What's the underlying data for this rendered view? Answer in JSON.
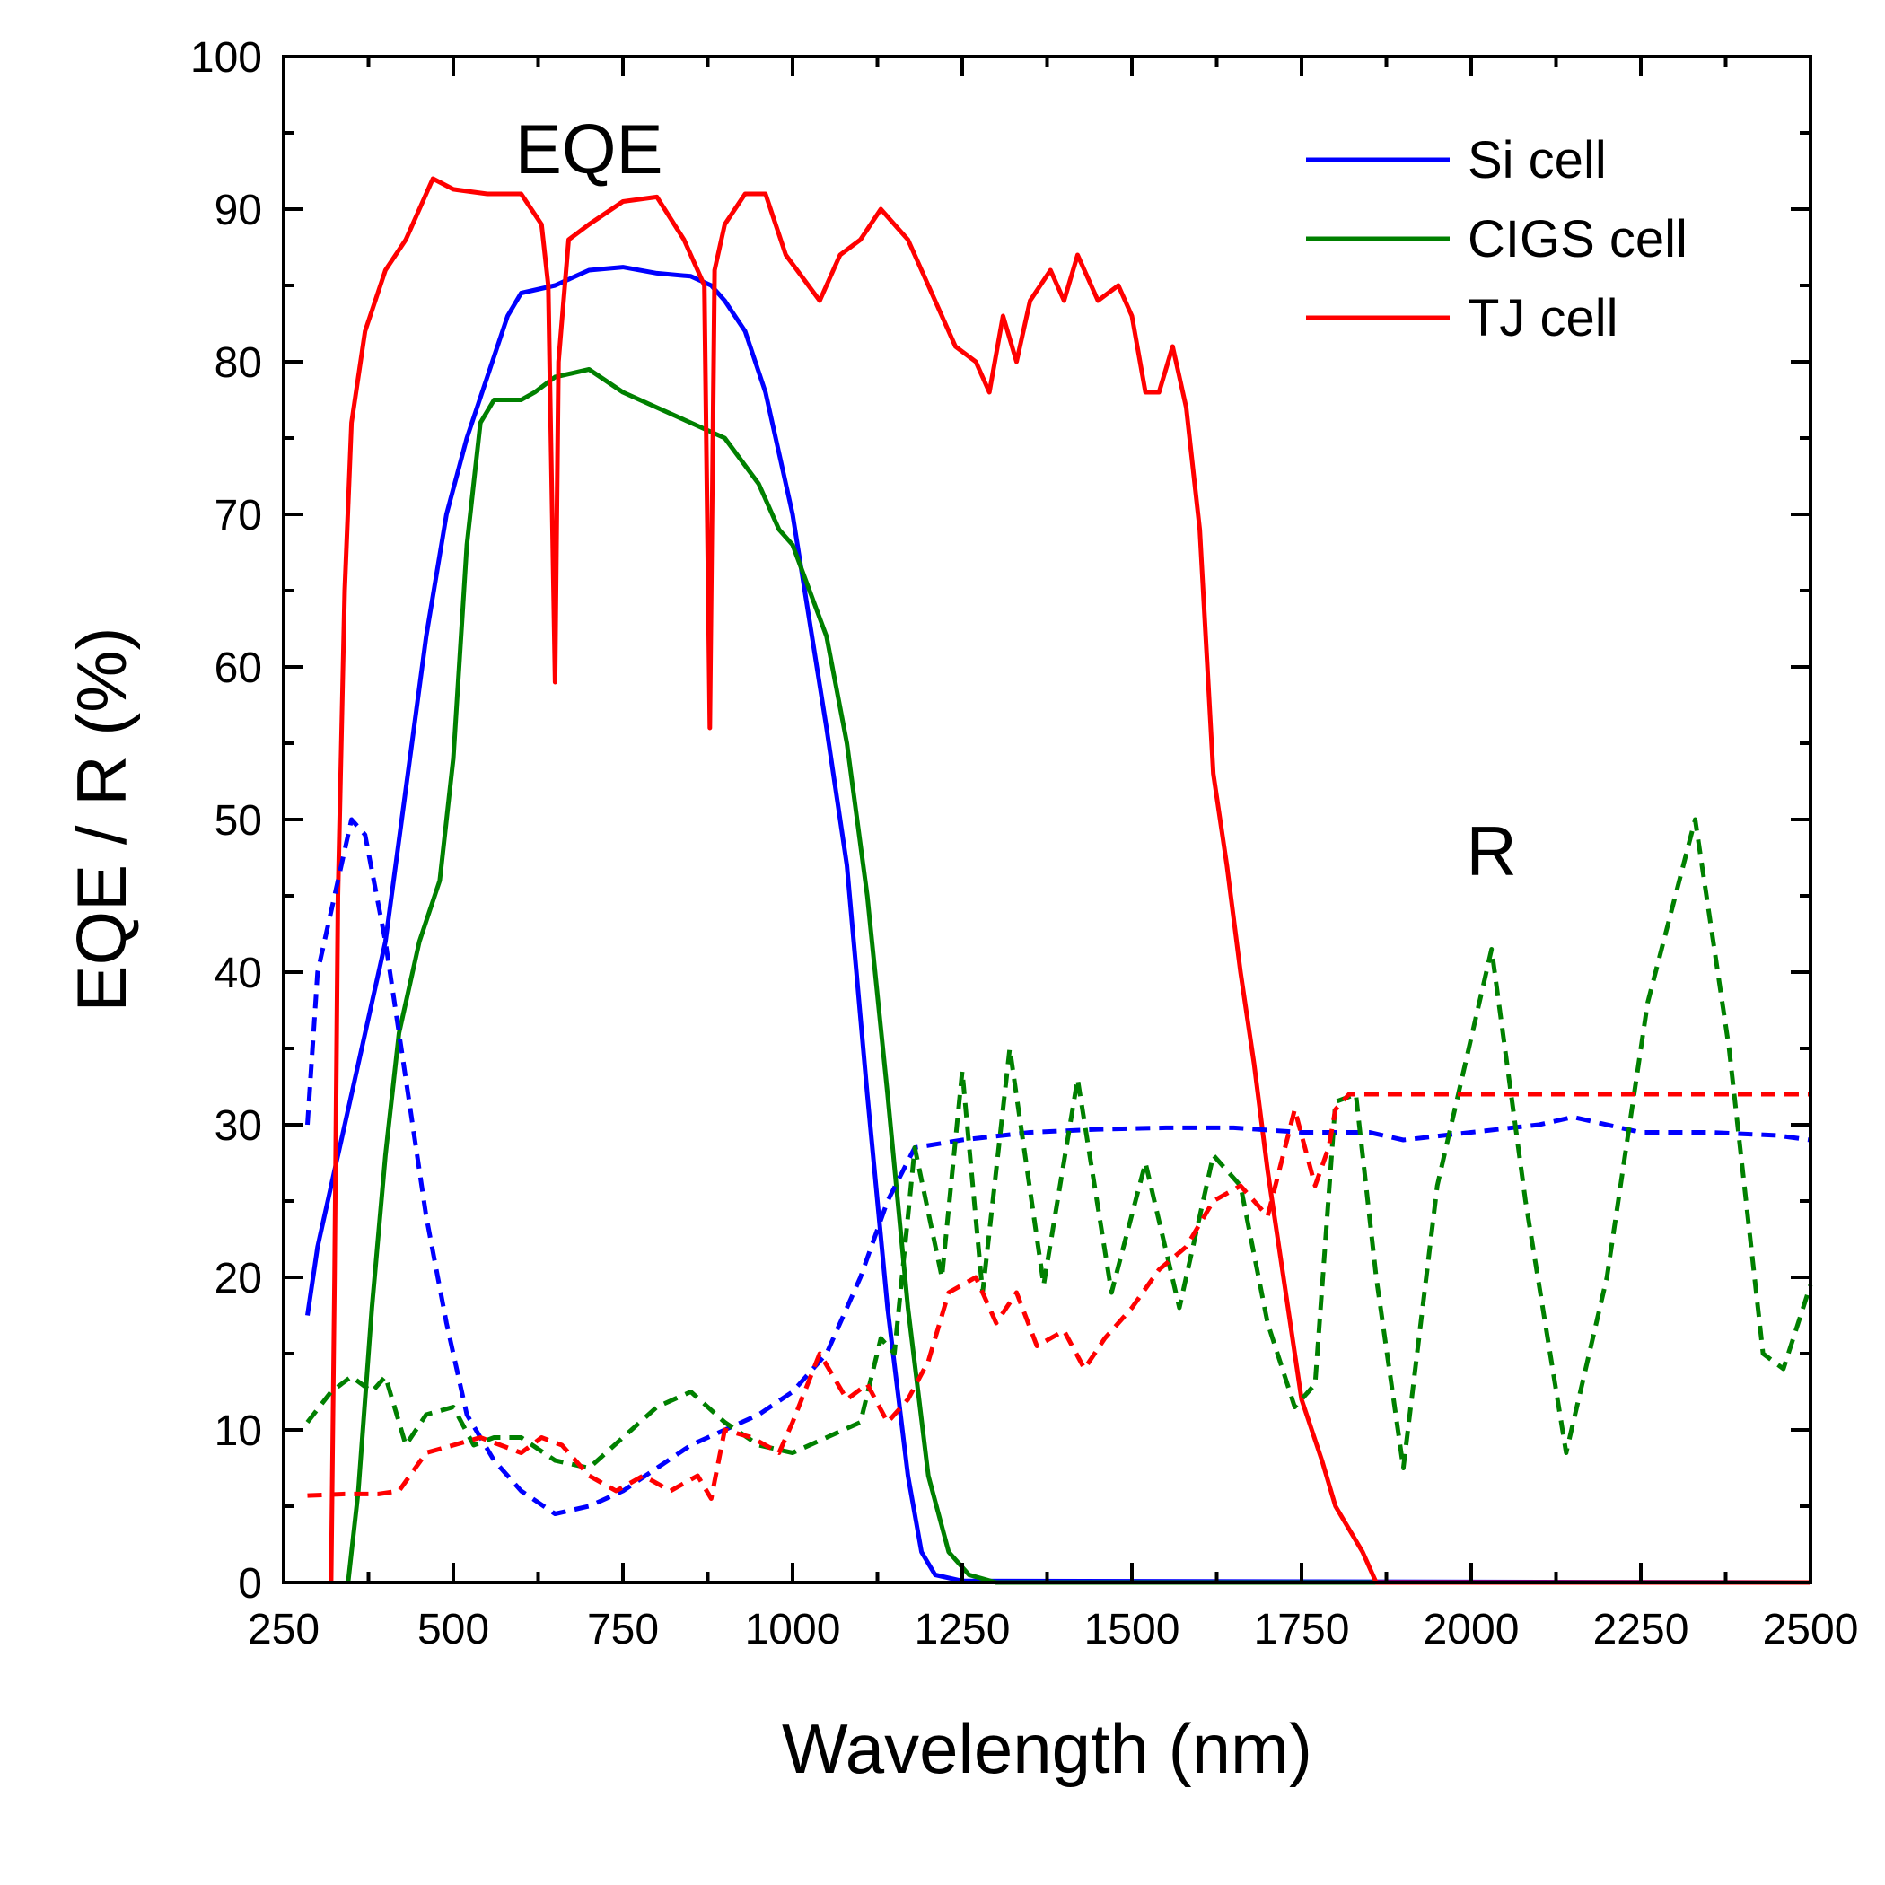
{
  "chart_data": {
    "type": "line",
    "xlabel": "Wavelength (nm)",
    "ylabel": "EQE / R (%)",
    "xlim": [
      250,
      2500
    ],
    "ylim": [
      0,
      100
    ],
    "x_ticks": [
      250,
      500,
      750,
      1000,
      1250,
      1500,
      1750,
      2000,
      2250,
      2500
    ],
    "y_ticks": [
      0,
      10,
      20,
      30,
      40,
      50,
      60,
      70,
      80,
      90,
      100
    ],
    "legend_position": "top-right",
    "grid": false,
    "annotations": [
      {
        "text": "EQE",
        "x": 700,
        "y": 94
      },
      {
        "text": "R",
        "x": 2030,
        "y": 48
      }
    ],
    "series": [
      {
        "name": "Si cell",
        "metric": "EQE",
        "style": "solid",
        "color": "#0000ff",
        "points": [
          [
            285,
            17.5
          ],
          [
            300,
            22
          ],
          [
            330,
            28
          ],
          [
            360,
            34
          ],
          [
            400,
            42
          ],
          [
            430,
            52
          ],
          [
            460,
            62
          ],
          [
            490,
            70
          ],
          [
            520,
            75
          ],
          [
            550,
            79
          ],
          [
            580,
            83
          ],
          [
            600,
            84.5
          ],
          [
            650,
            85
          ],
          [
            700,
            86
          ],
          [
            750,
            86.2
          ],
          [
            800,
            85.8
          ],
          [
            850,
            85.6
          ],
          [
            880,
            85
          ],
          [
            900,
            84
          ],
          [
            930,
            82
          ],
          [
            960,
            78
          ],
          [
            1000,
            70
          ],
          [
            1050,
            56
          ],
          [
            1080,
            47
          ],
          [
            1110,
            32
          ],
          [
            1140,
            18
          ],
          [
            1170,
            7
          ],
          [
            1190,
            2
          ],
          [
            1210,
            0.5
          ],
          [
            1250,
            0.1
          ],
          [
            2500,
            0
          ]
        ]
      },
      {
        "name": "CIGS cell",
        "metric": "EQE",
        "style": "solid",
        "color": "#008000",
        "points": [
          [
            345,
            0
          ],
          [
            360,
            6
          ],
          [
            380,
            18
          ],
          [
            400,
            28
          ],
          [
            420,
            36
          ],
          [
            450,
            42
          ],
          [
            480,
            46
          ],
          [
            500,
            54
          ],
          [
            520,
            68
          ],
          [
            540,
            76
          ],
          [
            560,
            77.5
          ],
          [
            600,
            77.5
          ],
          [
            620,
            78
          ],
          [
            650,
            79
          ],
          [
            700,
            79.5
          ],
          [
            750,
            78
          ],
          [
            800,
            77
          ],
          [
            850,
            76
          ],
          [
            900,
            75
          ],
          [
            950,
            72
          ],
          [
            980,
            69
          ],
          [
            1000,
            68
          ],
          [
            1050,
            62
          ],
          [
            1080,
            55
          ],
          [
            1110,
            45
          ],
          [
            1140,
            32
          ],
          [
            1170,
            18
          ],
          [
            1200,
            7
          ],
          [
            1230,
            2
          ],
          [
            1260,
            0.5
          ],
          [
            1300,
            0
          ],
          [
            2500,
            0
          ]
        ]
      },
      {
        "name": "TJ cell",
        "metric": "EQE",
        "style": "solid",
        "color": "#ff0000",
        "points": [
          [
            320,
            0
          ],
          [
            325,
            20
          ],
          [
            330,
            45
          ],
          [
            340,
            65
          ],
          [
            350,
            76
          ],
          [
            370,
            82
          ],
          [
            400,
            86
          ],
          [
            430,
            88
          ],
          [
            450,
            90
          ],
          [
            470,
            92
          ],
          [
            500,
            91.3
          ],
          [
            550,
            91
          ],
          [
            600,
            91
          ],
          [
            630,
            89
          ],
          [
            640,
            85
          ],
          [
            650,
            59
          ],
          [
            655,
            80
          ],
          [
            670,
            88
          ],
          [
            700,
            89
          ],
          [
            750,
            90.5
          ],
          [
            800,
            90.8
          ],
          [
            840,
            88
          ],
          [
            870,
            85
          ],
          [
            878,
            56
          ],
          [
            885,
            86
          ],
          [
            900,
            89
          ],
          [
            930,
            91
          ],
          [
            960,
            91
          ],
          [
            990,
            87
          ],
          [
            1040,
            84
          ],
          [
            1070,
            87
          ],
          [
            1100,
            88
          ],
          [
            1130,
            90
          ],
          [
            1150,
            89
          ],
          [
            1170,
            88
          ],
          [
            1200,
            85
          ],
          [
            1240,
            81
          ],
          [
            1270,
            80
          ],
          [
            1290,
            78
          ],
          [
            1310,
            83
          ],
          [
            1330,
            80
          ],
          [
            1350,
            84
          ],
          [
            1380,
            86
          ],
          [
            1400,
            84
          ],
          [
            1420,
            87
          ],
          [
            1450,
            84
          ],
          [
            1480,
            85
          ],
          [
            1500,
            83
          ],
          [
            1520,
            78
          ],
          [
            1540,
            78
          ],
          [
            1560,
            81
          ],
          [
            1580,
            77
          ],
          [
            1600,
            69
          ],
          [
            1620,
            53
          ],
          [
            1640,
            47
          ],
          [
            1660,
            40
          ],
          [
            1680,
            34
          ],
          [
            1700,
            27
          ],
          [
            1730,
            18
          ],
          [
            1750,
            12
          ],
          [
            1780,
            8
          ],
          [
            1800,
            5
          ],
          [
            1840,
            2
          ],
          [
            1860,
            0
          ],
          [
            2500,
            0
          ]
        ]
      },
      {
        "name": "Si cell",
        "metric": "R",
        "style": "dashed",
        "color": "#0000ff",
        "points": [
          [
            285,
            30
          ],
          [
            300,
            40
          ],
          [
            330,
            46
          ],
          [
            350,
            50
          ],
          [
            370,
            49
          ],
          [
            400,
            42
          ],
          [
            430,
            33
          ],
          [
            460,
            24
          ],
          [
            490,
            17
          ],
          [
            520,
            11
          ],
          [
            560,
            8
          ],
          [
            600,
            6
          ],
          [
            650,
            4.5
          ],
          [
            700,
            5
          ],
          [
            750,
            6
          ],
          [
            800,
            7.5
          ],
          [
            850,
            9
          ],
          [
            900,
            10
          ],
          [
            950,
            11
          ],
          [
            1000,
            12.5
          ],
          [
            1050,
            15
          ],
          [
            1100,
            20
          ],
          [
            1140,
            25
          ],
          [
            1180,
            28.5
          ],
          [
            1250,
            29
          ],
          [
            1350,
            29.5
          ],
          [
            1450,
            29.7
          ],
          [
            1550,
            29.8
          ],
          [
            1650,
            29.8
          ],
          [
            1750,
            29.5
          ],
          [
            1850,
            29.5
          ],
          [
            1900,
            29
          ],
          [
            2000,
            29.5
          ],
          [
            2100,
            30
          ],
          [
            2150,
            30.5
          ],
          [
            2250,
            29.5
          ],
          [
            2350,
            29.5
          ],
          [
            2450,
            29.3
          ],
          [
            2500,
            29
          ]
        ]
      },
      {
        "name": "CIGS cell",
        "metric": "R",
        "style": "dashed",
        "color": "#008000",
        "points": [
          [
            285,
            10.5
          ],
          [
            320,
            12.5
          ],
          [
            350,
            13.5
          ],
          [
            380,
            12.5
          ],
          [
            400,
            13.5
          ],
          [
            430,
            9
          ],
          [
            460,
            11
          ],
          [
            500,
            11.5
          ],
          [
            530,
            9
          ],
          [
            560,
            9.5
          ],
          [
            600,
            9.5
          ],
          [
            650,
            8
          ],
          [
            700,
            7.5
          ],
          [
            750,
            9.5
          ],
          [
            800,
            11.5
          ],
          [
            850,
            12.5
          ],
          [
            900,
            10.5
          ],
          [
            950,
            9
          ],
          [
            1000,
            8.5
          ],
          [
            1050,
            9.5
          ],
          [
            1100,
            10.5
          ],
          [
            1130,
            16
          ],
          [
            1150,
            15
          ],
          [
            1180,
            28.5
          ],
          [
            1220,
            20
          ],
          [
            1250,
            33.5
          ],
          [
            1280,
            19
          ],
          [
            1320,
            35
          ],
          [
            1370,
            19.5
          ],
          [
            1420,
            33
          ],
          [
            1470,
            19
          ],
          [
            1520,
            27.5
          ],
          [
            1570,
            18
          ],
          [
            1620,
            28
          ],
          [
            1660,
            26
          ],
          [
            1700,
            17
          ],
          [
            1740,
            11.5
          ],
          [
            1770,
            13
          ],
          [
            1800,
            31.5
          ],
          [
            1830,
            32
          ],
          [
            1860,
            20
          ],
          [
            1900,
            7.5
          ],
          [
            1950,
            26
          ],
          [
            2030,
            41.5
          ],
          [
            2080,
            25
          ],
          [
            2140,
            8.5
          ],
          [
            2200,
            20
          ],
          [
            2260,
            38
          ],
          [
            2330,
            50
          ],
          [
            2380,
            35
          ],
          [
            2430,
            15
          ],
          [
            2460,
            14
          ],
          [
            2500,
            19.5
          ]
        ]
      },
      {
        "name": "TJ cell",
        "metric": "R",
        "style": "dashed",
        "color": "#ff0000",
        "points": [
          [
            285,
            5.7
          ],
          [
            340,
            5.8
          ],
          [
            390,
            5.8
          ],
          [
            420,
            6
          ],
          [
            460,
            8.5
          ],
          [
            500,
            9
          ],
          [
            540,
            9.5
          ],
          [
            600,
            8.5
          ],
          [
            630,
            9.5
          ],
          [
            660,
            9
          ],
          [
            700,
            7
          ],
          [
            740,
            6
          ],
          [
            780,
            7
          ],
          [
            820,
            6
          ],
          [
            860,
            7
          ],
          [
            880,
            5.5
          ],
          [
            900,
            10
          ],
          [
            940,
            9.5
          ],
          [
            980,
            8.5
          ],
          [
            1000,
            10.5
          ],
          [
            1040,
            15
          ],
          [
            1080,
            12
          ],
          [
            1110,
            13
          ],
          [
            1140,
            10.5
          ],
          [
            1170,
            12
          ],
          [
            1200,
            14.5
          ],
          [
            1230,
            19
          ],
          [
            1270,
            20
          ],
          [
            1300,
            17
          ],
          [
            1330,
            19
          ],
          [
            1360,
            15.5
          ],
          [
            1400,
            16.5
          ],
          [
            1430,
            14
          ],
          [
            1460,
            16
          ],
          [
            1500,
            18
          ],
          [
            1540,
            20.5
          ],
          [
            1580,
            22
          ],
          [
            1620,
            25
          ],
          [
            1660,
            26
          ],
          [
            1700,
            24
          ],
          [
            1740,
            31
          ],
          [
            1770,
            26
          ],
          [
            1790,
            28.5
          ],
          [
            1800,
            31
          ],
          [
            1820,
            32
          ],
          [
            1860,
            32
          ],
          [
            2500,
            32
          ]
        ]
      }
    ]
  }
}
